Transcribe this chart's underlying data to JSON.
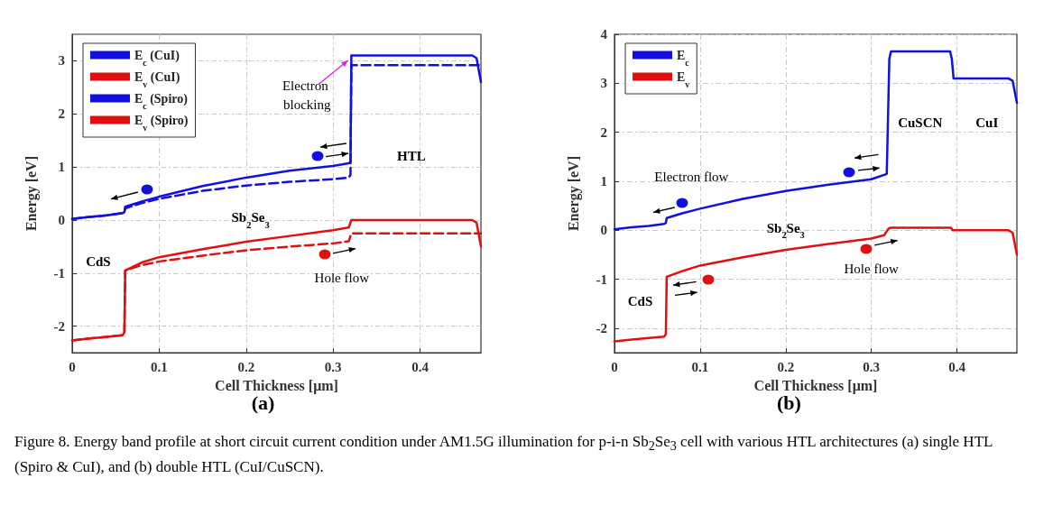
{
  "chart_data": [
    {
      "type": "line",
      "xlabel": "Cell Thickness [μm]",
      "ylabel": "Energy [eV]",
      "xlim": [
        0,
        0.47
      ],
      "xticks": [
        0,
        0.1,
        0.2,
        0.3,
        0.4
      ],
      "ylim": [
        -2.5,
        3.5
      ],
      "yticks": [
        -2,
        -1,
        0,
        1,
        2,
        3
      ],
      "grid": true,
      "legend": "top left",
      "marker": "none",
      "annotations": [
        "CdS",
        "Sb$_{2}$Se$_{3}$",
        "HTL",
        "Electron blocking",
        "Hole flow",
        "(a)",
        "Figure 8. Energy band profile at short circuit current condition under AM1.5G illumination for p-i-n Sb$_{2}$Se$_{3}$ cell with various HTL architectures (a) single HTL (Spiro & CuI), and (b) double HTL (CuI/CuSCN)."
      ],
      "series": [
        {
          "name": "E$_{c}$ (CuI)",
          "color": "#1010e0",
          "line_style": "solid",
          "x": [
            0,
            0.02,
            0.04,
            0.058,
            0.06,
            0.061,
            0.08,
            0.1,
            0.15,
            0.2,
            0.25,
            0.3,
            0.318,
            0.32,
            0.321,
            0.46,
            0.465,
            0.47
          ],
          "values": [
            0.02,
            0.06,
            0.09,
            0.13,
            0.15,
            0.25,
            0.35,
            0.44,
            0.64,
            0.8,
            0.93,
            1.02,
            1.07,
            1.1,
            3.1,
            3.1,
            3.05,
            2.6
          ]
        },
        {
          "name": "E$_{v}$ (CuI)",
          "color": "#e01010",
          "line_style": "solid",
          "x": [
            0,
            0.02,
            0.04,
            0.058,
            0.06,
            0.061,
            0.08,
            0.1,
            0.15,
            0.2,
            0.25,
            0.3,
            0.318,
            0.321,
            0.46,
            0.465,
            0.47
          ],
          "values": [
            -2.27,
            -2.23,
            -2.2,
            -2.17,
            -2.12,
            -0.95,
            -0.8,
            -0.7,
            -0.55,
            -0.41,
            -0.3,
            -0.19,
            -0.14,
            0,
            0,
            -0.05,
            -0.5
          ]
        },
        {
          "name": "E$_{c}$ (Spiro)",
          "color": "#1010e0",
          "line_style": "dashed",
          "x": [
            0,
            0.02,
            0.04,
            0.058,
            0.06,
            0.061,
            0.08,
            0.1,
            0.15,
            0.2,
            0.25,
            0.3,
            0.318,
            0.32,
            0.321,
            0.47
          ],
          "values": [
            0.02,
            0.06,
            0.09,
            0.13,
            0.15,
            0.22,
            0.32,
            0.4,
            0.55,
            0.65,
            0.72,
            0.77,
            0.8,
            0.85,
            2.92,
            2.92
          ]
        },
        {
          "name": "E$_{v}$ (Spiro)",
          "color": "#e01010",
          "line_style": "dashed",
          "x": [
            0,
            0.02,
            0.04,
            0.058,
            0.06,
            0.061,
            0.08,
            0.1,
            0.15,
            0.2,
            0.25,
            0.3,
            0.318,
            0.321,
            0.47
          ],
          "values": [
            -2.27,
            -2.23,
            -2.2,
            -2.17,
            -2.12,
            -0.95,
            -0.85,
            -0.78,
            -0.67,
            -0.57,
            -0.5,
            -0.44,
            -0.4,
            -0.25,
            -0.25
          ]
        }
      ]
    },
    {
      "type": "line",
      "xlabel": "Cell Thickness [μm]",
      "ylabel": "Energy [eV]",
      "xlim": [
        0,
        0.47
      ],
      "xticks": [
        0,
        0.1,
        0.2,
        0.3,
        0.4
      ],
      "ylim": [
        -2.5,
        4
      ],
      "yticks": [
        -2,
        -1,
        0,
        1,
        2,
        3,
        4
      ],
      "grid": true,
      "legend": "top left",
      "marker": "none",
      "annotations": [
        "Electron flow",
        "CdS",
        "Sb$_{2}$Se$_{3}$",
        "Hole flow",
        "CuSCN",
        "CuI",
        "(b)"
      ],
      "series": [
        {
          "name": "E$_{c}$",
          "color": "#1010e0",
          "line_style": "solid",
          "x": [
            0,
            0.02,
            0.04,
            0.058,
            0.06,
            0.061,
            0.08,
            0.1,
            0.15,
            0.2,
            0.25,
            0.3,
            0.318,
            0.321,
            0.323,
            0.392,
            0.394,
            0.396,
            0.46,
            0.465,
            0.47
          ],
          "values": [
            0.02,
            0.06,
            0.09,
            0.13,
            0.15,
            0.25,
            0.35,
            0.44,
            0.64,
            0.8,
            0.93,
            1.04,
            1.15,
            3.5,
            3.65,
            3.65,
            3.5,
            3.1,
            3.1,
            3.05,
            2.6
          ]
        },
        {
          "name": "E$_{v}$",
          "color": "#e01010",
          "line_style": "solid",
          "x": [
            0,
            0.02,
            0.04,
            0.058,
            0.06,
            0.061,
            0.08,
            0.1,
            0.15,
            0.2,
            0.25,
            0.3,
            0.315,
            0.32,
            0.322,
            0.393,
            0.395,
            0.46,
            0.465,
            0.47
          ],
          "values": [
            -2.27,
            -2.23,
            -2.2,
            -2.17,
            -2.12,
            -0.95,
            -0.83,
            -0.72,
            -0.55,
            -0.4,
            -0.28,
            -0.17,
            -0.1,
            0.03,
            0.05,
            0.05,
            0,
            0,
            -0.05,
            -0.5
          ]
        }
      ]
    }
  ]
}
